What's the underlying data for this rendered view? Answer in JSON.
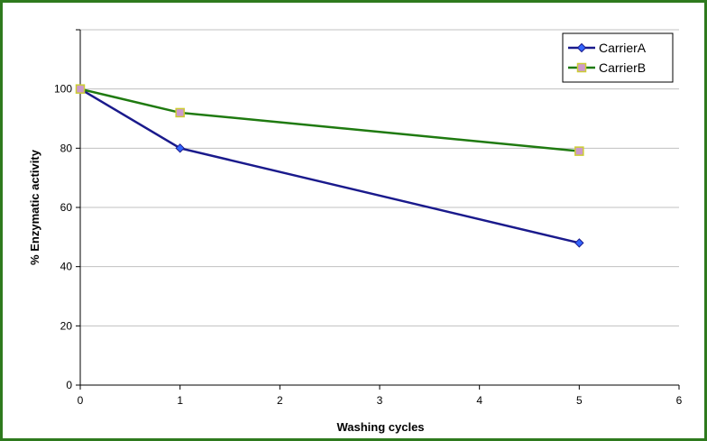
{
  "chart_data": {
    "type": "line",
    "title": "",
    "xlabel": "Washing cycles",
    "ylabel": "% Enzymatic activity",
    "xlim": [
      0,
      6
    ],
    "ylim": [
      0,
      120
    ],
    "x_ticks": [
      "0",
      "1",
      "2",
      "3",
      "4",
      "5",
      "6"
    ],
    "y_ticks": [
      "0",
      "20",
      "40",
      "60",
      "80",
      "100"
    ],
    "grid": "horizontal",
    "legend_position": "top-right",
    "x": [
      0,
      1,
      5
    ],
    "series": [
      {
        "name": "CarrierA",
        "values": [
          100,
          80,
          48
        ],
        "color": "#1a1a8c",
        "marker": "diamond",
        "marker_color": "#3366ff"
      },
      {
        "name": "CarrierB",
        "values": [
          100,
          92,
          79
        ],
        "color": "#1f7a10",
        "marker": "square",
        "marker_color": "#cc99cc",
        "marker_edge": "#cccc33"
      }
    ]
  }
}
